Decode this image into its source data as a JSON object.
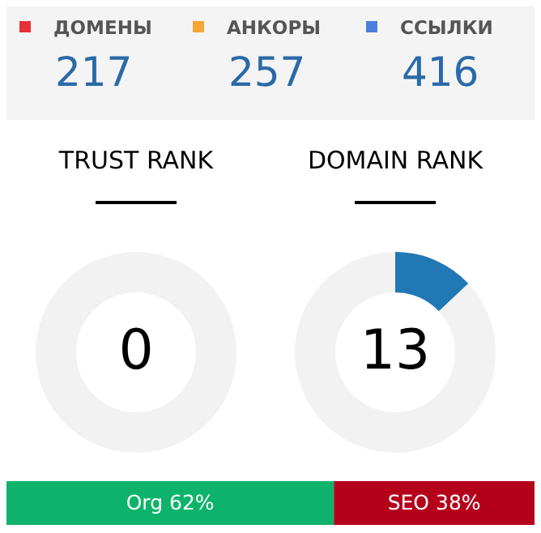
{
  "chart_data": [
    {
      "type": "other",
      "categories": [
        "ДОМЕНЫ",
        "АНКОРЫ",
        "ССЫЛКИ"
      ],
      "values": [
        217,
        257,
        416
      ],
      "colors": [
        "#e8303a",
        "#f5a53a",
        "#4a7fdc"
      ],
      "data_labels": true
    },
    {
      "type": "donut",
      "title": "TRUST RANK",
      "categories": [
        null,
        null
      ],
      "values": [
        0,
        100
      ],
      "colors": [
        "#2278b4",
        "#f2f2f2"
      ],
      "annotations": [
        "0"
      ]
    },
    {
      "type": "donut",
      "title": "DOMAIN RANK",
      "categories": [
        null,
        null
      ],
      "values": [
        13,
        87
      ],
      "colors": [
        "#2278b4",
        "#f2f2f2"
      ],
      "annotations": [
        "13"
      ]
    },
    {
      "type": "bar",
      "orientation": "horizontal",
      "stacked": true,
      "categories": [
        null
      ],
      "series": [
        {
          "color": "#0db36a",
          "values": [
            62
          ],
          "value_labels": [
            "Org 62%"
          ]
        },
        {
          "color": "#b5001b",
          "values": [
            38
          ],
          "value_labels": [
            "SEO 38%"
          ]
        }
      ]
    }
  ]
}
